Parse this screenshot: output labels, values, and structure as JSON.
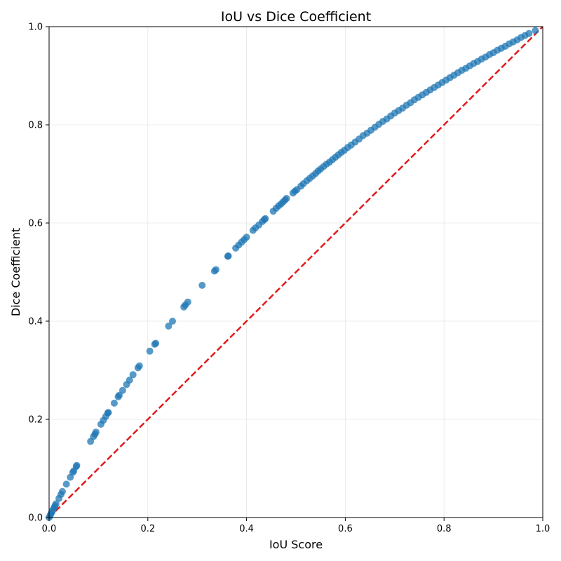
{
  "chart_data": {
    "type": "scatter",
    "title": "IoU vs Dice Coefficient",
    "xlabel": "IoU Score",
    "ylabel": "Dice Coefficient",
    "xlim": [
      0,
      1
    ],
    "ylim": [
      0,
      1
    ],
    "xticks": [
      "0.0",
      "0.2",
      "0.4",
      "0.6",
      "0.8",
      "1.0"
    ],
    "yticks": [
      "0.0",
      "0.2",
      "0.4",
      "0.6",
      "0.8",
      "1.0"
    ],
    "grid": true,
    "point_color": "#1f77b4",
    "reference_line": {
      "style": "dashed",
      "color": "#e31a1c",
      "from": [
        0,
        0
      ],
      "to": [
        1,
        1
      ]
    },
    "relationship": "dice = 2 * iou / (1 + iou)",
    "points": [
      {
        "x": 0.0,
        "y": 0.0
      },
      {
        "x": 0.002,
        "y": 0.004
      },
      {
        "x": 0.004,
        "y": 0.008
      },
      {
        "x": 0.006,
        "y": 0.012
      },
      {
        "x": 0.008,
        "y": 0.016
      },
      {
        "x": 0.01,
        "y": 0.02
      },
      {
        "x": 0.012,
        "y": 0.024
      },
      {
        "x": 0.014,
        "y": 0.028
      },
      {
        "x": 0.02,
        "y": 0.039
      },
      {
        "x": 0.024,
        "y": 0.047
      },
      {
        "x": 0.027,
        "y": 0.053
      },
      {
        "x": 0.035,
        "y": 0.068
      },
      {
        "x": 0.043,
        "y": 0.082
      },
      {
        "x": 0.048,
        "y": 0.092
      },
      {
        "x": 0.05,
        "y": 0.095
      },
      {
        "x": 0.055,
        "y": 0.104
      },
      {
        "x": 0.056,
        "y": 0.106
      },
      {
        "x": 0.084,
        "y": 0.155
      },
      {
        "x": 0.09,
        "y": 0.165
      },
      {
        "x": 0.093,
        "y": 0.17
      },
      {
        "x": 0.095,
        "y": 0.174
      },
      {
        "x": 0.105,
        "y": 0.19
      },
      {
        "x": 0.11,
        "y": 0.198
      },
      {
        "x": 0.115,
        "y": 0.206
      },
      {
        "x": 0.119,
        "y": 0.213
      },
      {
        "x": 0.12,
        "y": 0.214
      },
      {
        "x": 0.132,
        "y": 0.233
      },
      {
        "x": 0.14,
        "y": 0.246
      },
      {
        "x": 0.142,
        "y": 0.249
      },
      {
        "x": 0.149,
        "y": 0.259
      },
      {
        "x": 0.157,
        "y": 0.271
      },
      {
        "x": 0.163,
        "y": 0.28
      },
      {
        "x": 0.17,
        "y": 0.291
      },
      {
        "x": 0.18,
        "y": 0.305
      },
      {
        "x": 0.183,
        "y": 0.309
      },
      {
        "x": 0.204,
        "y": 0.339
      },
      {
        "x": 0.214,
        "y": 0.353
      },
      {
        "x": 0.216,
        "y": 0.355
      },
      {
        "x": 0.242,
        "y": 0.39
      },
      {
        "x": 0.25,
        "y": 0.4
      },
      {
        "x": 0.273,
        "y": 0.429
      },
      {
        "x": 0.276,
        "y": 0.433
      },
      {
        "x": 0.281,
        "y": 0.439
      },
      {
        "x": 0.31,
        "y": 0.473
      },
      {
        "x": 0.335,
        "y": 0.502
      },
      {
        "x": 0.338,
        "y": 0.505
      },
      {
        "x": 0.362,
        "y": 0.532
      },
      {
        "x": 0.363,
        "y": 0.533
      },
      {
        "x": 0.378,
        "y": 0.549
      },
      {
        "x": 0.384,
        "y": 0.555
      },
      {
        "x": 0.39,
        "y": 0.561
      },
      {
        "x": 0.395,
        "y": 0.566
      },
      {
        "x": 0.4,
        "y": 0.571
      },
      {
        "x": 0.413,
        "y": 0.585
      },
      {
        "x": 0.418,
        "y": 0.59
      },
      {
        "x": 0.425,
        "y": 0.596
      },
      {
        "x": 0.432,
        "y": 0.603
      },
      {
        "x": 0.436,
        "y": 0.607
      },
      {
        "x": 0.438,
        "y": 0.609
      },
      {
        "x": 0.454,
        "y": 0.624
      },
      {
        "x": 0.46,
        "y": 0.63
      },
      {
        "x": 0.465,
        "y": 0.635
      },
      {
        "x": 0.47,
        "y": 0.639
      },
      {
        "x": 0.474,
        "y": 0.643
      },
      {
        "x": 0.478,
        "y": 0.647
      },
      {
        "x": 0.481,
        "y": 0.65
      },
      {
        "x": 0.494,
        "y": 0.661
      },
      {
        "x": 0.498,
        "y": 0.665
      },
      {
        "x": 0.502,
        "y": 0.668
      },
      {
        "x": 0.51,
        "y": 0.675
      },
      {
        "x": 0.515,
        "y": 0.68
      },
      {
        "x": 0.522,
        "y": 0.686
      },
      {
        "x": 0.528,
        "y": 0.691
      },
      {
        "x": 0.534,
        "y": 0.696
      },
      {
        "x": 0.54,
        "y": 0.701
      },
      {
        "x": 0.545,
        "y": 0.706
      },
      {
        "x": 0.55,
        "y": 0.71
      },
      {
        "x": 0.556,
        "y": 0.715
      },
      {
        "x": 0.562,
        "y": 0.72
      },
      {
        "x": 0.568,
        "y": 0.724
      },
      {
        "x": 0.574,
        "y": 0.729
      },
      {
        "x": 0.58,
        "y": 0.734
      },
      {
        "x": 0.586,
        "y": 0.739
      },
      {
        "x": 0.592,
        "y": 0.744
      },
      {
        "x": 0.598,
        "y": 0.748
      },
      {
        "x": 0.605,
        "y": 0.754
      },
      {
        "x": 0.612,
        "y": 0.759
      },
      {
        "x": 0.62,
        "y": 0.765
      },
      {
        "x": 0.628,
        "y": 0.771
      },
      {
        "x": 0.636,
        "y": 0.778
      },
      {
        "x": 0.644,
        "y": 0.783
      },
      {
        "x": 0.652,
        "y": 0.789
      },
      {
        "x": 0.66,
        "y": 0.795
      },
      {
        "x": 0.668,
        "y": 0.801
      },
      {
        "x": 0.676,
        "y": 0.807
      },
      {
        "x": 0.684,
        "y": 0.812
      },
      {
        "x": 0.692,
        "y": 0.818
      },
      {
        "x": 0.7,
        "y": 0.824
      },
      {
        "x": 0.708,
        "y": 0.829
      },
      {
        "x": 0.716,
        "y": 0.834
      },
      {
        "x": 0.724,
        "y": 0.84
      },
      {
        "x": 0.732,
        "y": 0.845
      },
      {
        "x": 0.74,
        "y": 0.851
      },
      {
        "x": 0.748,
        "y": 0.856
      },
      {
        "x": 0.756,
        "y": 0.861
      },
      {
        "x": 0.764,
        "y": 0.866
      },
      {
        "x": 0.772,
        "y": 0.871
      },
      {
        "x": 0.78,
        "y": 0.876
      },
      {
        "x": 0.788,
        "y": 0.881
      },
      {
        "x": 0.796,
        "y": 0.886
      },
      {
        "x": 0.804,
        "y": 0.891
      },
      {
        "x": 0.812,
        "y": 0.896
      },
      {
        "x": 0.82,
        "y": 0.901
      },
      {
        "x": 0.828,
        "y": 0.906
      },
      {
        "x": 0.836,
        "y": 0.911
      },
      {
        "x": 0.844,
        "y": 0.915
      },
      {
        "x": 0.852,
        "y": 0.92
      },
      {
        "x": 0.86,
        "y": 0.925
      },
      {
        "x": 0.868,
        "y": 0.929
      },
      {
        "x": 0.876,
        "y": 0.934
      },
      {
        "x": 0.884,
        "y": 0.938
      },
      {
        "x": 0.892,
        "y": 0.943
      },
      {
        "x": 0.9,
        "y": 0.947
      },
      {
        "x": 0.908,
        "y": 0.952
      },
      {
        "x": 0.916,
        "y": 0.956
      },
      {
        "x": 0.924,
        "y": 0.96
      },
      {
        "x": 0.932,
        "y": 0.965
      },
      {
        "x": 0.94,
        "y": 0.969
      },
      {
        "x": 0.948,
        "y": 0.973
      },
      {
        "x": 0.956,
        "y": 0.978
      },
      {
        "x": 0.964,
        "y": 0.982
      },
      {
        "x": 0.972,
        "y": 0.986
      },
      {
        "x": 0.985,
        "y": 0.992
      }
    ]
  }
}
